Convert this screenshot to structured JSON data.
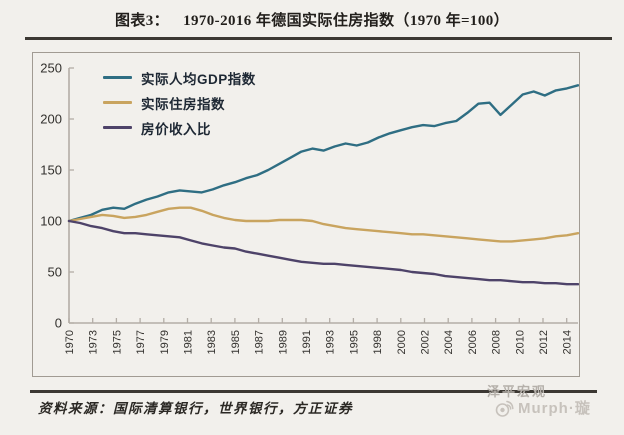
{
  "header": {
    "tag": "图表3：",
    "title": "1970-2016 年德国实际住房指数（1970 年=100）"
  },
  "source": {
    "text": "资料来源：国际清算银行，世界银行，方正证券"
  },
  "watermark": {
    "brand": "泽平宏观",
    "weibo": "Murph·璇"
  },
  "colors": {
    "background": "#f2f0ec",
    "axis": "#b3ada6",
    "tick_text": "#33312e",
    "rule": "#3c3833",
    "box_border": "#a19b93",
    "watermark": "#bcb7b1",
    "gdp_line": "#2f6e83",
    "housing_line": "#c9a45f",
    "ratio_line": "#4e4369"
  },
  "chart_data": {
    "type": "line",
    "title": "1970-2016 年德国实际住房指数（1970 年=100）",
    "xlabel": "",
    "ylabel": "",
    "grid": false,
    "legend_position": "top-left",
    "ylim": [
      0,
      250
    ],
    "y_ticks": [
      0,
      50,
      100,
      150,
      200,
      250
    ],
    "x_range": [
      1970,
      2016
    ],
    "x_tick_labels": [
      "1970",
      "1973",
      "1975",
      "1977",
      "1979",
      "1981",
      "1983",
      "1985",
      "1987",
      "1989",
      "1991",
      "1993",
      "1995",
      "1998",
      "2000",
      "2002",
      "2004",
      "2006",
      "2008",
      "2010",
      "2012",
      "2014"
    ],
    "x": [
      1970,
      1971,
      1972,
      1973,
      1974,
      1975,
      1976,
      1977,
      1978,
      1979,
      1980,
      1981,
      1982,
      1983,
      1984,
      1985,
      1986,
      1987,
      1988,
      1989,
      1990,
      1991,
      1992,
      1993,
      1994,
      1995,
      1996,
      1997,
      1998,
      1999,
      2000,
      2001,
      2002,
      2003,
      2004,
      2005,
      2006,
      2007,
      2008,
      2009,
      2010,
      2011,
      2012,
      2013,
      2014,
      2015,
      2016
    ],
    "series": [
      {
        "name": "实际人均GDP指数",
        "color": "#2f6e83",
        "values": [
          100,
          103,
          106,
          111,
          113,
          112,
          117,
          121,
          124,
          128,
          130,
          129,
          128,
          131,
          135,
          138,
          142,
          145,
          150,
          156,
          162,
          168,
          171,
          169,
          173,
          176,
          174,
          177,
          182,
          186,
          189,
          192,
          194,
          193,
          196,
          198,
          206,
          215,
          216,
          204,
          214,
          224,
          227,
          223,
          228,
          230,
          233
        ]
      },
      {
        "name": "实际住房指数",
        "color": "#c9a45f",
        "values": [
          100,
          102,
          104,
          106,
          105,
          103,
          104,
          106,
          109,
          112,
          113,
          113,
          110,
          106,
          103,
          101,
          100,
          100,
          100,
          101,
          101,
          101,
          100,
          97,
          95,
          93,
          92,
          91,
          90,
          89,
          88,
          87,
          87,
          86,
          85,
          84,
          83,
          82,
          81,
          80,
          80,
          81,
          82,
          83,
          85,
          86,
          88
        ]
      },
      {
        "name": "房价收入比",
        "color": "#4e4369",
        "values": [
          100,
          98,
          95,
          93,
          90,
          88,
          88,
          87,
          86,
          85,
          84,
          81,
          78,
          76,
          74,
          73,
          70,
          68,
          66,
          64,
          62,
          60,
          59,
          58,
          58,
          57,
          56,
          55,
          54,
          53,
          52,
          50,
          49,
          48,
          46,
          45,
          44,
          43,
          42,
          42,
          41,
          40,
          40,
          39,
          39,
          38,
          38
        ]
      }
    ]
  }
}
